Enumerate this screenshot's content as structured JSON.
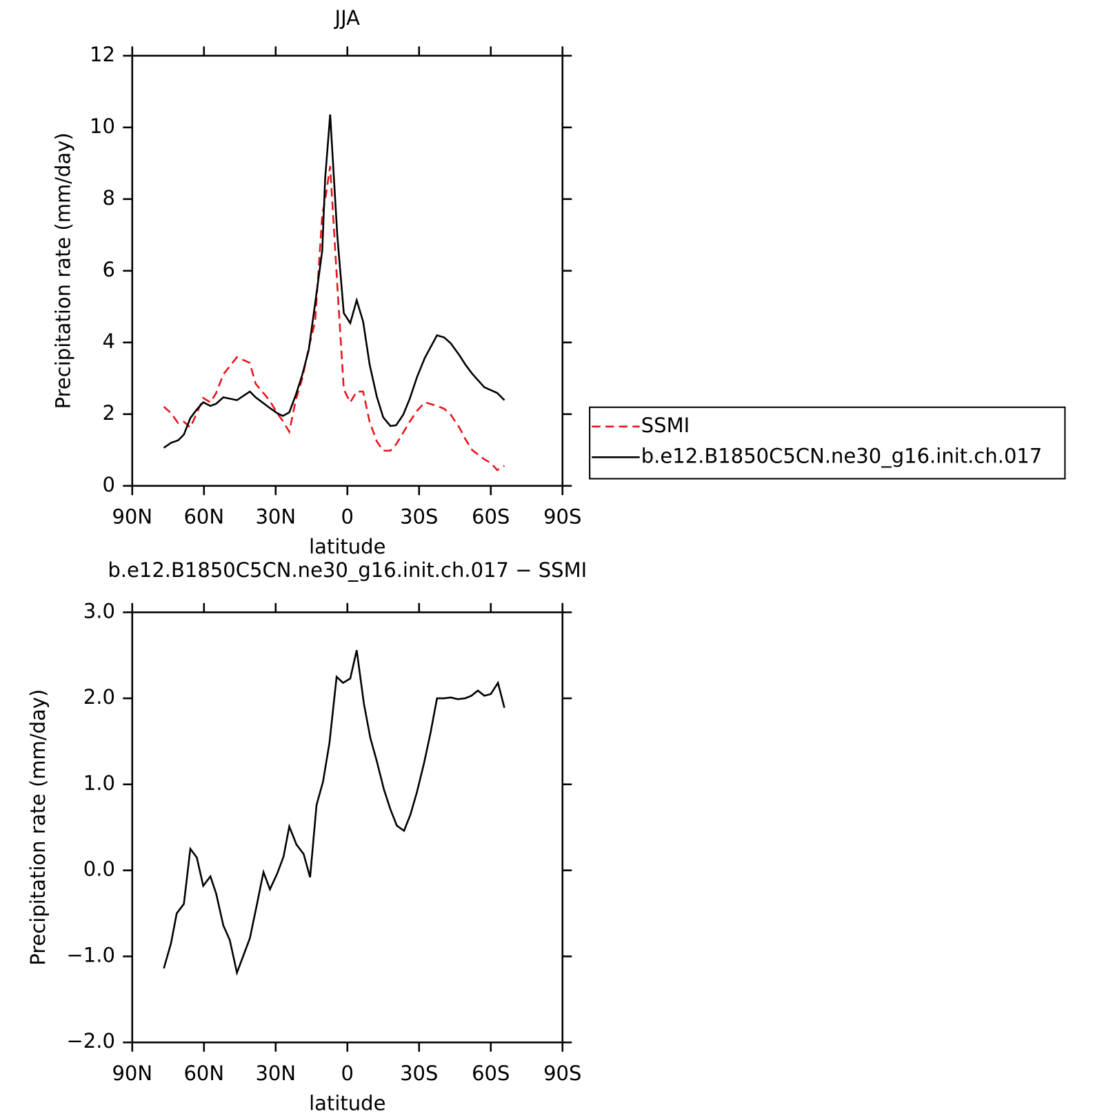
{
  "chart_data": [
    {
      "type": "line",
      "title": "JJA",
      "xlabel": "latitude",
      "ylabel": "Precipitation rate (mm/day)",
      "x": [
        76.8,
        73.8,
        70.8,
        68.4,
        65.7,
        63,
        60.3,
        57.3,
        54.9,
        51.9,
        46.2,
        40.8,
        38.4,
        32.4,
        29.4,
        27,
        24.3,
        21.6,
        18.9,
        16.2,
        13.5,
        10.5,
        9.3,
        7.2,
        4.2,
        1.5,
        -1.2,
        -3.9,
        -6.6,
        -9.3,
        -12.3,
        -15,
        -18,
        -20.4,
        -23.4,
        -26.1,
        -29.1,
        -32.4,
        -37.5,
        -40.5,
        -43.2,
        -46.8,
        -49.5,
        -52.2,
        -57.3,
        -60,
        -62.7,
        -65.7
      ],
      "series": [
        {
          "name": "SSMI",
          "color": "#e8141c",
          "linestyle": "dashed",
          "values": [
            2.21,
            2.03,
            1.75,
            1.79,
            1.63,
            2.03,
            2.45,
            2.33,
            2.59,
            3.11,
            3.59,
            3.43,
            2.85,
            2.37,
            2.03,
            1.81,
            1.51,
            2.39,
            2.99,
            3.84,
            4.58,
            7.57,
            7.97,
            8.92,
            5.58,
            2.69,
            2.33,
            2.63,
            2.63,
            1.79,
            1.24,
            0.98,
            0.98,
            1.16,
            1.49,
            1.79,
            2.09,
            2.33,
            2.23,
            2.15,
            1.99,
            1.63,
            1.29,
            1.0,
            0.74,
            0.64,
            0.44,
            0.56
          ]
        },
        {
          "name": "b.e12.B1850C5CN.ne30_g16.init.ch.017",
          "color": "#000000",
          "linestyle": "solid",
          "values": [
            1.06,
            1.2,
            1.27,
            1.43,
            1.89,
            2.13,
            2.33,
            2.23,
            2.29,
            2.47,
            2.39,
            2.63,
            2.47,
            2.17,
            2.03,
            1.95,
            2.05,
            2.53,
            3.09,
            3.78,
            5.08,
            6.57,
            8.57,
            10.36,
            6.97,
            4.82,
            4.54,
            5.18,
            4.58,
            3.39,
            2.49,
            1.91,
            1.67,
            1.69,
            1.99,
            2.43,
            3.03,
            3.57,
            4.2,
            4.14,
            3.98,
            3.65,
            3.37,
            3.13,
            2.75,
            2.67,
            2.59,
            2.39
          ]
        }
      ],
      "xlim": [
        90,
        -90
      ],
      "xticks": [
        {
          "value": 90,
          "label": "90N"
        },
        {
          "value": 60,
          "label": "60N"
        },
        {
          "value": 30,
          "label": "30N"
        },
        0,
        {
          "value": -30,
          "label": "30S"
        },
        {
          "value": -60,
          "label": "60S"
        },
        {
          "value": -90,
          "label": "90S"
        }
      ],
      "ylim": [
        0,
        12
      ],
      "yticks": [
        0,
        2,
        4,
        6,
        8,
        10,
        12
      ],
      "legend": "outside-right"
    },
    {
      "type": "line",
      "title": "b.e12.B1850C5CN.ne30_g16.init.ch.017 − SSMI",
      "xlabel": "latitude",
      "ylabel": "Precipitation rate (mm/day)",
      "x": [
        76.8,
        73.8,
        71.4,
        68.4,
        65.7,
        63,
        60.3,
        57.3,
        54.9,
        51.9,
        49.2,
        46.2,
        40.8,
        37.8,
        35.1,
        32.4,
        29.4,
        26.7,
        24.3,
        21.3,
        18.3,
        15.6,
        12.9,
        10.2,
        7.5,
        4.5,
        1.8,
        -1.2,
        -3.9,
        -6.9,
        -9.6,
        -12.3,
        -15.3,
        -18,
        -20.7,
        -23.7,
        -26.4,
        -29.1,
        -32.1,
        -34.8,
        -37.5,
        -40.5,
        -43.2,
        -46.2,
        -49.2,
        -51.9,
        -54.6,
        -57.3,
        -60,
        -63,
        -65.7
      ],
      "color": "#000000",
      "values": [
        -1.14,
        -0.85,
        -0.5,
        -0.39,
        0.25,
        0.15,
        -0.18,
        -0.07,
        -0.27,
        -0.64,
        -0.81,
        -1.19,
        -0.79,
        -0.39,
        -0.02,
        -0.22,
        -0.04,
        0.16,
        0.51,
        0.3,
        0.19,
        -0.08,
        0.76,
        1.03,
        1.48,
        2.25,
        2.18,
        2.23,
        2.56,
        1.94,
        1.54,
        1.27,
        0.94,
        0.71,
        0.52,
        0.46,
        0.65,
        0.91,
        1.25,
        1.6,
        2.0,
        2.0,
        2.01,
        1.99,
        2.0,
        2.03,
        2.09,
        2.03,
        2.05,
        2.18,
        1.89
      ],
      "xlim": [
        90,
        -90
      ],
      "xticks": [
        {
          "value": 90,
          "label": "90N"
        },
        {
          "value": 60,
          "label": "60N"
        },
        {
          "value": 30,
          "label": "30N"
        },
        0,
        {
          "value": -30,
          "label": "30S"
        },
        {
          "value": -60,
          "label": "60S"
        },
        {
          "value": -90,
          "label": "90S"
        }
      ],
      "ylim": [
        -2,
        3
      ],
      "yticks": [
        {
          "value": -2,
          "label": "−2.0"
        },
        {
          "value": -1,
          "label": "−1.0"
        },
        {
          "value": 0,
          "label": "0.0"
        },
        {
          "value": 1,
          "label": "1.0"
        },
        {
          "value": 2,
          "label": "2.0"
        },
        {
          "value": 3,
          "label": "3.0"
        }
      ]
    }
  ]
}
